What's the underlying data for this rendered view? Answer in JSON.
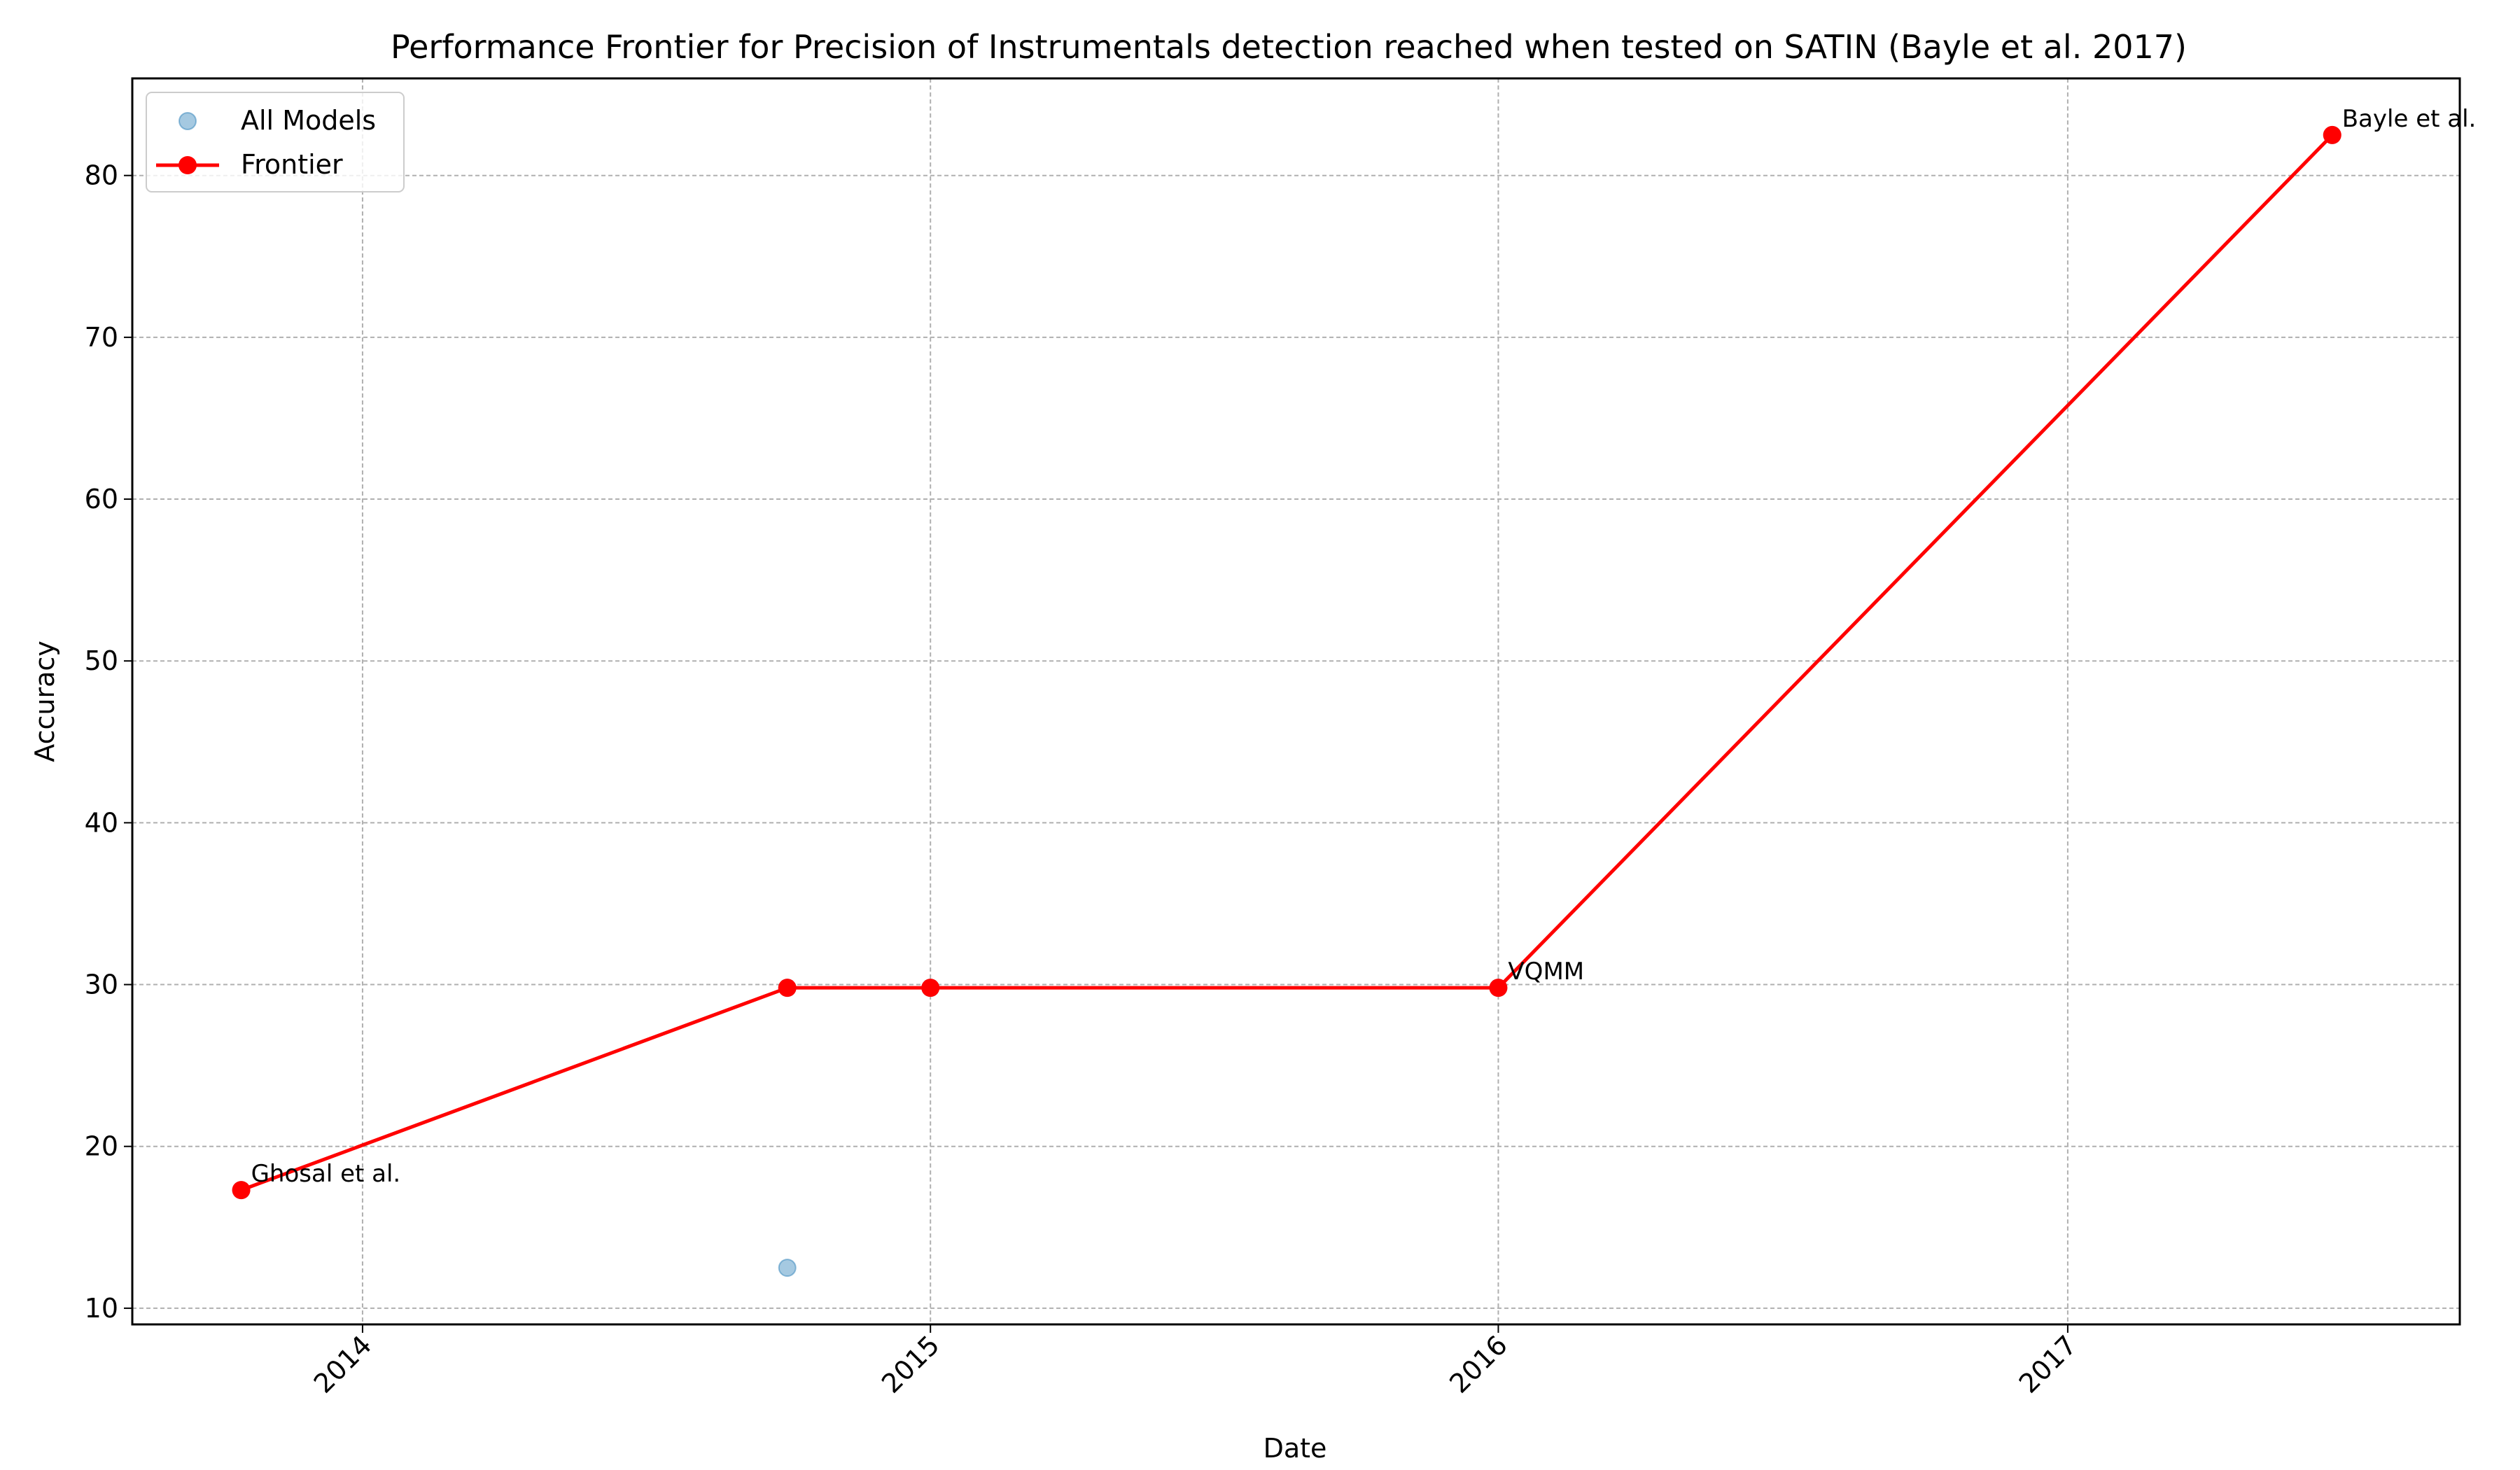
{
  "chart_data": {
    "type": "line",
    "title": "Performance Frontier for Precision of Instrumentals detection reached when tested on SATIN (Bayle et al. 2017)",
    "xlabel": "Date",
    "ylabel": "Accuracy",
    "x_axis_type": "date",
    "xlim": [
      "2013-08-06",
      "2017-09-10"
    ],
    "ylim": [
      9.0,
      86.0
    ],
    "x_ticks": [
      "2014",
      "2015",
      "2016",
      "2017"
    ],
    "x_tick_dates": [
      "2014-01-01",
      "2015-01-01",
      "2016-01-01",
      "2017-01-01"
    ],
    "y_ticks": [
      10,
      20,
      30,
      40,
      50,
      60,
      70,
      80
    ],
    "grid": true,
    "legend_position": "top-left",
    "colors": {
      "all_models": "#1f77b4",
      "frontier": "#ff0000"
    },
    "series": [
      {
        "name": "All Models",
        "kind": "scatter",
        "points": [
          {
            "x": "2013-10-15",
            "y": 17.3
          },
          {
            "x": "2014-10-01",
            "y": 29.8
          },
          {
            "x": "2014-10-01",
            "y": 12.5
          },
          {
            "x": "2015-01-01",
            "y": 29.8
          },
          {
            "x": "2016-01-01",
            "y": 29.8
          },
          {
            "x": "2017-06-20",
            "y": 82.5
          }
        ]
      },
      {
        "name": "Frontier",
        "kind": "line",
        "points": [
          {
            "x": "2013-10-15",
            "y": 17.3
          },
          {
            "x": "2014-10-01",
            "y": 29.8
          },
          {
            "x": "2015-01-01",
            "y": 29.8
          },
          {
            "x": "2016-01-01",
            "y": 29.8
          },
          {
            "x": "2017-06-20",
            "y": 82.5
          }
        ]
      }
    ],
    "annotations": [
      {
        "text": "Ghosal et al.",
        "x": "2013-10-15",
        "y": 17.3
      },
      {
        "text": "VQMM",
        "x": "2016-01-01",
        "y": 29.8
      },
      {
        "text": "Bayle et al.",
        "x": "2017-06-20",
        "y": 82.5
      }
    ]
  }
}
